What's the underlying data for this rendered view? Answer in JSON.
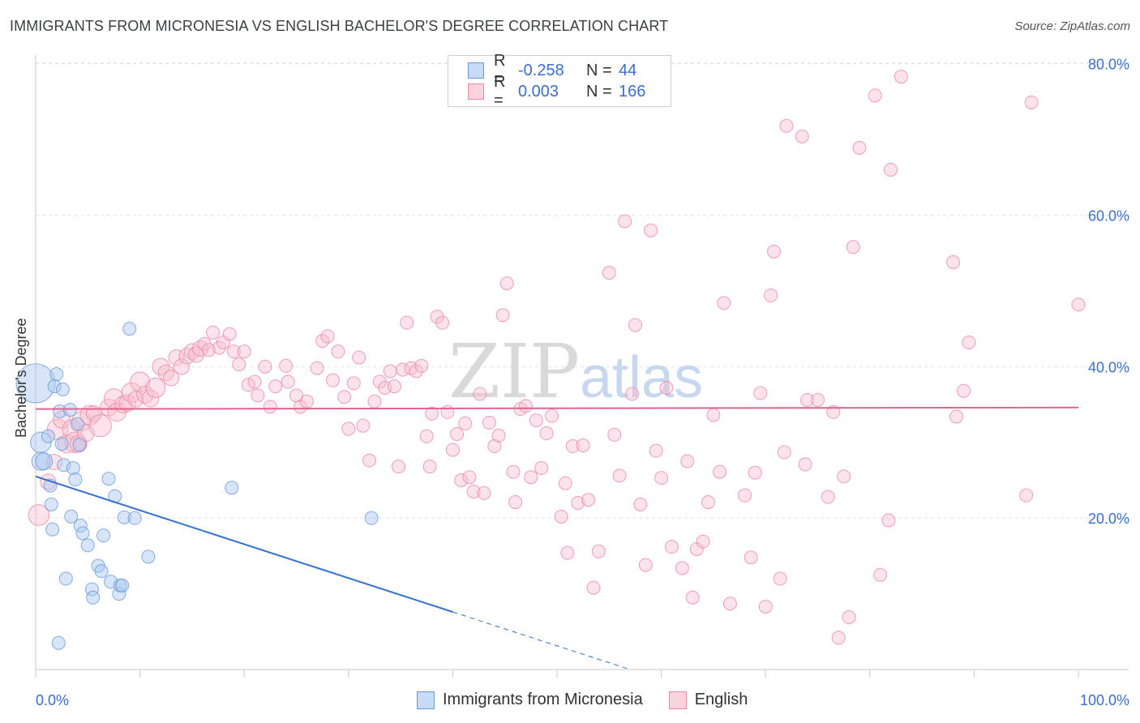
{
  "title": "IMMIGRANTS FROM MICRONESIA VS ENGLISH BACHELOR'S DEGREE CORRELATION CHART",
  "source": "Source: ZipAtlas.com",
  "watermark": {
    "zip": "ZIP",
    "atlas": "atlas"
  },
  "legend": {
    "rows": [
      {
        "r_label": "R =",
        "r_value": "-0.258",
        "n_label": "N =",
        "n_value": "44",
        "color": "#a8c6f0",
        "border": "#6a9ad8"
      },
      {
        "r_label": "R =",
        "r_value": "0.003",
        "n_label": "N =",
        "n_value": "166",
        "color": "#f9bfd0",
        "border": "#e889a6"
      }
    ]
  },
  "bottom_legend": [
    {
      "label": "Immigrants from Micronesia",
      "color": "#c6dbf6",
      "border": "#6a9ad8"
    },
    {
      "label": "English",
      "color": "#fbd3df",
      "border": "#e889a6"
    }
  ],
  "chart_data": {
    "type": "scatter",
    "title": "IMMIGRANTS FROM MICRONESIA VS ENGLISH BACHELOR'S DEGREE CORRELATION CHART",
    "xlabel": "",
    "ylabel": "Bachelor's Degree",
    "xlim": [
      0,
      100
    ],
    "ylim": [
      0,
      82
    ],
    "x_tick_labels": [
      {
        "value": 0,
        "label": "0.0%"
      },
      {
        "value": 100,
        "label": "100.0%"
      }
    ],
    "y_tick_labels": [
      {
        "value": 20,
        "label": "20.0%"
      },
      {
        "value": 40,
        "label": "40.0%"
      },
      {
        "value": 60,
        "label": "60.0%"
      },
      {
        "value": 80,
        "label": "80.0%"
      }
    ],
    "grid": true,
    "series": [
      {
        "name": "Immigrants from Micronesia",
        "color": "#a8c6f0",
        "stroke": "#6a9ad8",
        "trend": {
          "x0": 0,
          "y0": 25.5,
          "x1": 40,
          "y1": 7.6,
          "dash_to_x": 57,
          "dash_to_y": 0
        },
        "points": [
          [
            0,
            37.8,
            3
          ],
          [
            0.5,
            30,
            1.6
          ],
          [
            0.5,
            27.5,
            1.4
          ],
          [
            0.8,
            27.5,
            1.3
          ],
          [
            1.2,
            30.8,
            1
          ],
          [
            1.4,
            24.3,
            1
          ],
          [
            1.5,
            21.8,
            1
          ],
          [
            1.6,
            18.5,
            1
          ],
          [
            1.8,
            37.4,
            1
          ],
          [
            2,
            39,
            1
          ],
          [
            2.2,
            3.5,
            1
          ],
          [
            2.3,
            34.1,
            1
          ],
          [
            2.5,
            29.8,
            1
          ],
          [
            2.6,
            37,
            1
          ],
          [
            2.7,
            27,
            1
          ],
          [
            2.9,
            12,
            1
          ],
          [
            3.3,
            34.3,
            1
          ],
          [
            3.4,
            20.2,
            1
          ],
          [
            3.6,
            26.6,
            1
          ],
          [
            3.8,
            25.1,
            1
          ],
          [
            4,
            32.4,
            1
          ],
          [
            4.2,
            29.7,
            1
          ],
          [
            4.3,
            19,
            1
          ],
          [
            4.5,
            18,
            1
          ],
          [
            5,
            16.4,
            1
          ],
          [
            5.4,
            10.6,
            1
          ],
          [
            5.5,
            9.5,
            1
          ],
          [
            6,
            13.7,
            1
          ],
          [
            6.3,
            13,
            1
          ],
          [
            6.5,
            17.7,
            1
          ],
          [
            7,
            25.2,
            1
          ],
          [
            7.2,
            11.6,
            1
          ],
          [
            7.6,
            22.9,
            1
          ],
          [
            8,
            10,
            1
          ],
          [
            8.1,
            11.1,
            1
          ],
          [
            8.3,
            11.1,
            1
          ],
          [
            8.5,
            20.1,
            1
          ],
          [
            9,
            45,
            1
          ],
          [
            9.5,
            20,
            1
          ],
          [
            10.8,
            14.9,
            1
          ],
          [
            18.8,
            24,
            1
          ],
          [
            32.2,
            20,
            1
          ]
        ]
      },
      {
        "name": "English",
        "color": "#f9bfd0",
        "stroke": "#e889a6",
        "trend": {
          "x0": 0,
          "y0": 34.4,
          "x1": 100,
          "y1": 34.6
        },
        "points": [
          [
            0.3,
            20.4,
            1.6
          ],
          [
            1.2,
            24.8,
            1.2
          ],
          [
            1.8,
            27.4,
            1.2
          ],
          [
            2.1,
            31.7,
            1.6
          ],
          [
            2.5,
            33,
            1.3
          ],
          [
            3,
            29.8,
            1.4
          ],
          [
            3.5,
            31.7,
            1.5
          ],
          [
            3.8,
            30,
            1.6
          ],
          [
            4.1,
            29.8,
            1.3
          ],
          [
            4.4,
            32.8,
            1.5
          ],
          [
            4.8,
            31.2,
            1.3
          ],
          [
            5.2,
            33.6,
            1.5
          ],
          [
            5.6,
            33.8,
            1.2
          ],
          [
            6.2,
            32.2,
            1.7
          ],
          [
            7,
            34.6,
            1.3
          ],
          [
            7.5,
            35.8,
            1.5
          ],
          [
            7.8,
            34,
            1.4
          ],
          [
            8.4,
            35,
            1.3
          ],
          [
            8.8,
            35.2,
            1.3
          ],
          [
            9.2,
            36.6,
            1.5
          ],
          [
            9.6,
            35.7,
            1.2
          ],
          [
            10,
            38,
            1.5
          ],
          [
            10.5,
            36.3,
            1.3
          ],
          [
            11,
            35.8,
            1.3
          ],
          [
            11.5,
            37.2,
            1.5
          ],
          [
            12,
            40,
            1.3
          ],
          [
            12.5,
            39.2,
            1.2
          ],
          [
            13,
            38.5,
            1.2
          ],
          [
            13.5,
            41.2,
            1.2
          ],
          [
            14,
            40,
            1.2
          ],
          [
            14.5,
            41.4,
            1.2
          ],
          [
            15,
            42,
            1.2
          ],
          [
            15.4,
            41.6,
            1.2
          ],
          [
            15.8,
            42.4,
            1.2
          ],
          [
            16.2,
            43,
            1
          ],
          [
            16.6,
            42.2,
            1
          ],
          [
            17,
            44.5,
            1
          ],
          [
            17.6,
            42.5,
            1
          ],
          [
            18,
            43.2,
            1
          ],
          [
            18.6,
            44.3,
            1
          ],
          [
            19,
            42,
            1
          ],
          [
            19.5,
            40.3,
            1
          ],
          [
            20,
            42,
            1
          ],
          [
            20.4,
            37.6,
            1
          ],
          [
            21,
            38,
            1
          ],
          [
            21.3,
            36.2,
            1
          ],
          [
            22,
            40,
            1
          ],
          [
            22.5,
            34.7,
            1
          ],
          [
            23,
            37.4,
            1
          ],
          [
            24,
            40.1,
            1
          ],
          [
            24.2,
            38,
            1
          ],
          [
            25,
            36.2,
            1
          ],
          [
            25.4,
            34.7,
            1
          ],
          [
            26,
            35.4,
            1
          ],
          [
            27,
            39.8,
            1
          ],
          [
            27.5,
            43.4,
            1
          ],
          [
            28,
            44,
            1
          ],
          [
            28.5,
            38.2,
            1
          ],
          [
            29,
            42,
            1
          ],
          [
            29.6,
            36,
            1
          ],
          [
            30,
            31.8,
            1
          ],
          [
            30.5,
            37.8,
            1
          ],
          [
            31,
            41.2,
            1
          ],
          [
            31.4,
            32.2,
            1
          ],
          [
            32,
            27.6,
            1
          ],
          [
            32.5,
            35.4,
            1
          ],
          [
            33,
            38,
            1
          ],
          [
            33.5,
            37.2,
            1
          ],
          [
            34,
            39.4,
            1
          ],
          [
            34.4,
            37.4,
            1
          ],
          [
            34.8,
            26.8,
            1
          ],
          [
            35.2,
            39.6,
            1
          ],
          [
            35.6,
            45.8,
            1
          ],
          [
            36,
            39.8,
            1
          ],
          [
            36.5,
            39.4,
            1
          ],
          [
            37,
            40.1,
            1
          ],
          [
            37.5,
            30.8,
            1
          ],
          [
            37.8,
            26.8,
            1
          ],
          [
            38,
            33.8,
            1
          ],
          [
            38.5,
            46.6,
            1
          ],
          [
            39,
            45.8,
            1
          ],
          [
            39.5,
            34,
            1
          ],
          [
            40,
            29,
            1
          ],
          [
            40.4,
            31.1,
            1
          ],
          [
            40.8,
            25,
            1
          ],
          [
            41.2,
            32.5,
            1
          ],
          [
            41.6,
            25.4,
            1
          ],
          [
            42,
            23.5,
            1
          ],
          [
            42.6,
            36.4,
            1
          ],
          [
            43,
            23.3,
            1
          ],
          [
            43.5,
            32.6,
            1
          ],
          [
            44,
            29.5,
            1
          ],
          [
            44.4,
            30.9,
            1
          ],
          [
            44.8,
            46.8,
            1
          ],
          [
            45.2,
            51,
            1
          ],
          [
            45.8,
            26.1,
            1
          ],
          [
            46,
            22.1,
            1
          ],
          [
            46.5,
            34.4,
            1
          ],
          [
            47,
            34.8,
            1
          ],
          [
            47.5,
            25.4,
            1
          ],
          [
            48,
            32.9,
            1
          ],
          [
            48.5,
            26.6,
            1
          ],
          [
            49,
            31.2,
            1
          ],
          [
            49.5,
            33.5,
            1
          ],
          [
            50.4,
            20.2,
            1
          ],
          [
            50.8,
            24.6,
            1
          ],
          [
            51,
            15.4,
            1
          ],
          [
            51.5,
            29.5,
            1
          ],
          [
            52,
            22,
            1
          ],
          [
            52.5,
            29.6,
            1
          ],
          [
            53,
            22.4,
            1
          ],
          [
            53.5,
            10.8,
            1
          ],
          [
            54,
            15.6,
            1
          ],
          [
            55,
            52.4,
            1
          ],
          [
            55.5,
            31,
            1
          ],
          [
            56,
            25.6,
            1
          ],
          [
            56.5,
            59.2,
            1
          ],
          [
            57.2,
            36.4,
            1
          ],
          [
            57.5,
            45.5,
            1
          ],
          [
            58,
            21.8,
            1
          ],
          [
            58.5,
            13.8,
            1
          ],
          [
            59,
            58,
            1
          ],
          [
            59.5,
            28.9,
            1
          ],
          [
            60,
            25.3,
            1
          ],
          [
            60.5,
            37.2,
            1
          ],
          [
            61,
            16.2,
            1
          ],
          [
            62,
            13.4,
            1
          ],
          [
            62.5,
            27.5,
            1
          ],
          [
            63,
            9.5,
            1
          ],
          [
            63.4,
            15.9,
            1
          ],
          [
            64,
            16.9,
            1
          ],
          [
            64.5,
            22.1,
            1
          ],
          [
            65,
            33.6,
            1
          ],
          [
            65.6,
            26.1,
            1
          ],
          [
            66,
            48.4,
            1
          ],
          [
            66.6,
            8.7,
            1
          ],
          [
            68,
            23,
            1
          ],
          [
            68.6,
            14.8,
            1
          ],
          [
            69,
            26,
            1
          ],
          [
            69.5,
            36.5,
            1
          ],
          [
            70,
            8.3,
            1
          ],
          [
            70.5,
            49.4,
            1
          ],
          [
            70.8,
            55.2,
            1
          ],
          [
            71.4,
            12,
            1
          ],
          [
            71.8,
            28.7,
            1
          ],
          [
            72,
            71.8,
            1
          ],
          [
            73.5,
            70.4,
            1
          ],
          [
            73.8,
            27.1,
            1
          ],
          [
            74,
            35.6,
            1
          ],
          [
            75,
            35.6,
            1
          ],
          [
            76,
            22.8,
            1
          ],
          [
            76.5,
            34,
            1
          ],
          [
            77,
            4.2,
            1
          ],
          [
            77.5,
            25.5,
            1
          ],
          [
            78,
            6.9,
            1
          ],
          [
            78.4,
            55.8,
            1
          ],
          [
            79,
            68.9,
            1
          ],
          [
            80.5,
            75.8,
            1
          ],
          [
            81,
            12.5,
            1
          ],
          [
            81.8,
            19.7,
            1
          ],
          [
            82,
            66,
            1
          ],
          [
            83,
            78.3,
            1
          ],
          [
            88,
            53.8,
            1
          ],
          [
            88.3,
            33.4,
            1
          ],
          [
            89,
            36.8,
            1
          ],
          [
            89.5,
            43.2,
            1
          ],
          [
            95,
            23,
            1
          ],
          [
            95.5,
            74.9,
            1
          ],
          [
            100,
            48.2,
            1
          ]
        ]
      }
    ]
  }
}
